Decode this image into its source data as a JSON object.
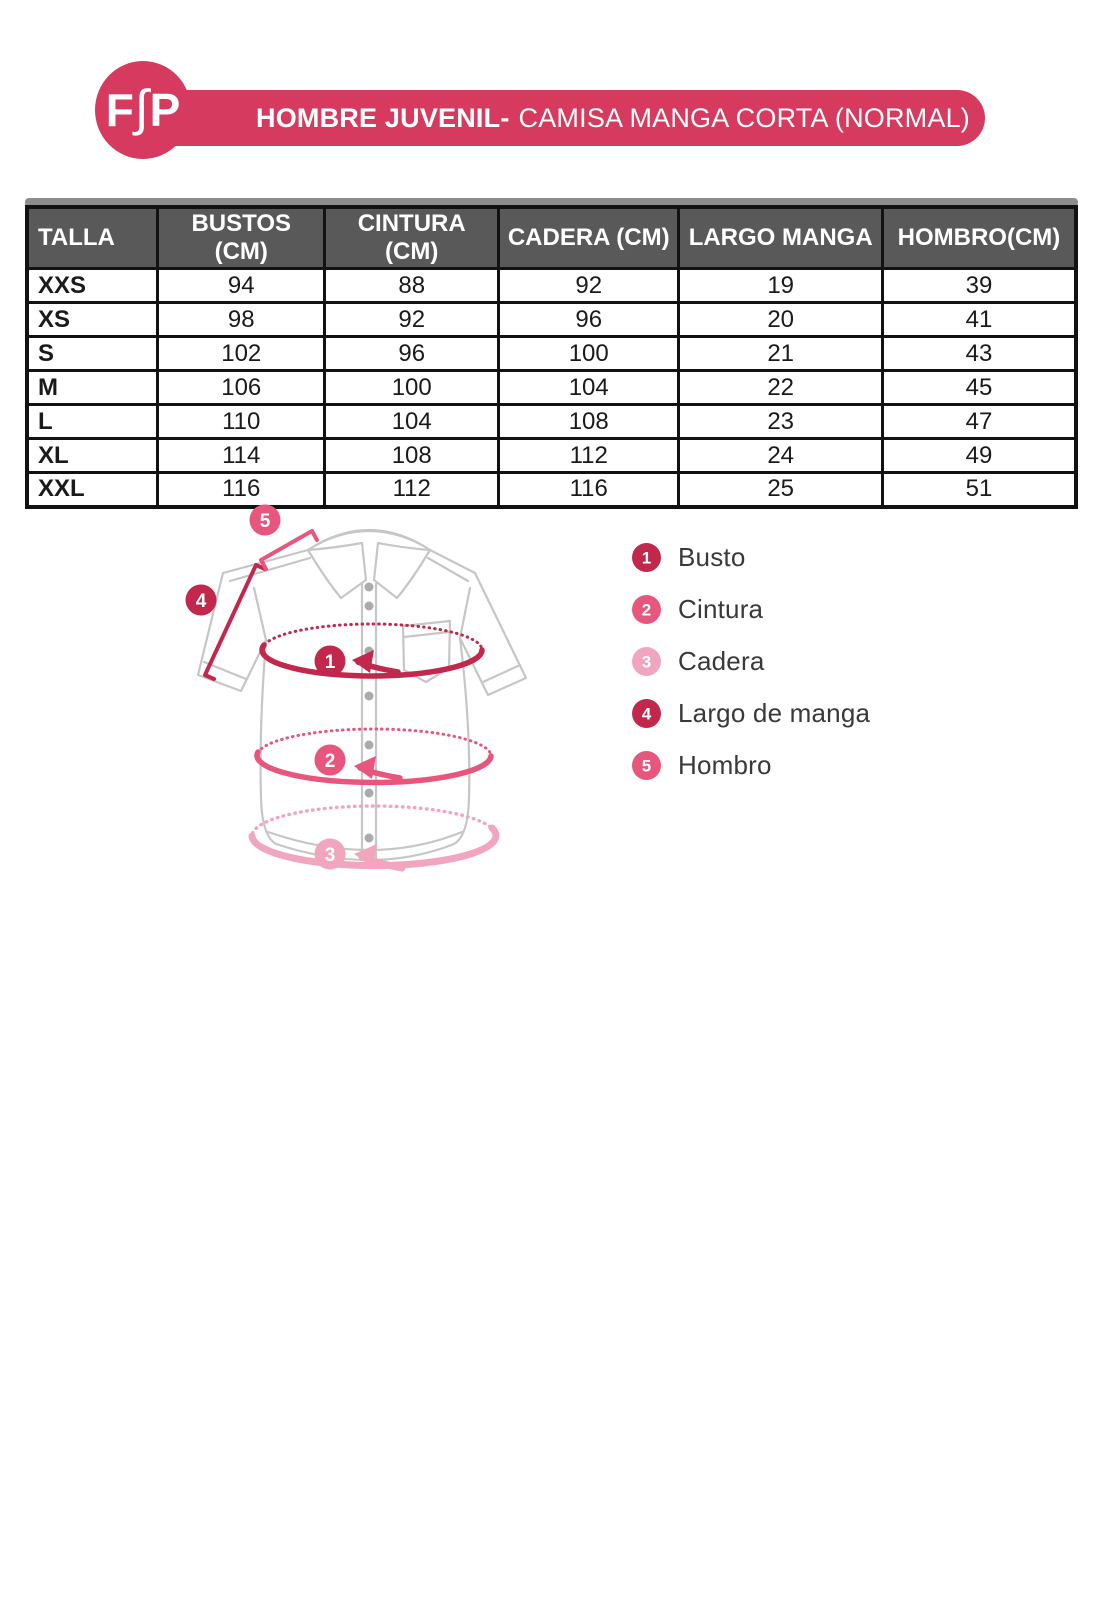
{
  "header": {
    "logo": {
      "f": "F",
      "s": "∫",
      "p": "P"
    },
    "title_bold": "HOMBRE JUVENIL-",
    "title_regular": "CAMISA MANGA CORTA (NORMAL)"
  },
  "size_table": {
    "columns": [
      "TALLA",
      "BUSTOS (CM)",
      "CINTURA (CM)",
      "CADERA (CM)",
      "LARGO MANGA",
      "HOMBRO(CM)"
    ],
    "rows": [
      [
        "XXS",
        "94",
        "88",
        "92",
        "19",
        "39"
      ],
      [
        "XS",
        "98",
        "92",
        "96",
        "20",
        "41"
      ],
      [
        "S",
        "102",
        "96",
        "100",
        "21",
        "43"
      ],
      [
        "M",
        "106",
        "100",
        "104",
        "22",
        "45"
      ],
      [
        "L",
        "110",
        "104",
        "108",
        "23",
        "47"
      ],
      [
        "XL",
        "114",
        "108",
        "112",
        "24",
        "49"
      ],
      [
        "XXL",
        "116",
        "112",
        "116",
        "25",
        "51"
      ]
    ]
  },
  "diagram": {
    "markers": [
      {
        "number": "1",
        "label": "Busto",
        "color": "#c2274c"
      },
      {
        "number": "2",
        "label": "Cintura",
        "color": "#e8567d"
      },
      {
        "number": "3",
        "label": "Cadera",
        "color": "#f2a6be"
      },
      {
        "number": "4",
        "label": "Largo de manga",
        "color": "#c2274c"
      },
      {
        "number": "5",
        "label": "Hombro",
        "color": "#e8567d"
      }
    ]
  },
  "colors": {
    "brand_pink": "#d63a5e",
    "accent_dark": "#c2274c",
    "accent_medium": "#e8567d",
    "accent_light": "#f2a6be",
    "table_header_gray": "#595959",
    "shirt_outline_gray": "#c6c6c6"
  }
}
